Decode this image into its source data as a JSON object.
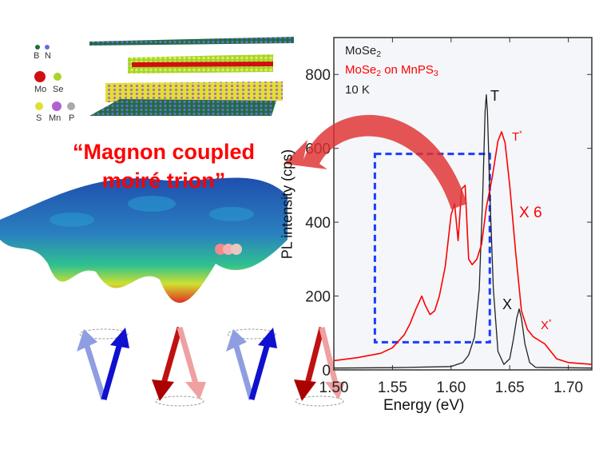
{
  "figure_title": [
    "“Magnon coupled",
    "moiré trion”"
  ],
  "atom_legend": {
    "row1": [
      "B",
      "N"
    ],
    "row2": [
      "Mo",
      "Se"
    ],
    "row3": [
      "S",
      "Mn",
      "P"
    ]
  },
  "colors": {
    "black_series": "#222222",
    "red_series": "#ff0000",
    "box": "#1a3cff",
    "title": "#ff0000"
  },
  "chart_data": {
    "type": "line",
    "xlabel": "Energy (eV)",
    "ylabel": "PL intensity (cps)",
    "xlim": [
      1.5,
      1.72
    ],
    "ylim": [
      0,
      900
    ],
    "xticks": [
      "1.50",
      "1.55",
      "1.60",
      "1.65",
      "1.70"
    ],
    "xtick_values": [
      1.5,
      1.55,
      1.6,
      1.65,
      1.7
    ],
    "yticks": [
      "0",
      "200",
      "400",
      "600",
      "800"
    ],
    "ytick_values": [
      0,
      200,
      400,
      600,
      800
    ],
    "legend": {
      "placement": "top-left",
      "entries": [
        {
          "label": "MoSe",
          "sub": "2",
          "color": "#222222"
        },
        {
          "label": "MoSe",
          "sub": "2",
          "suffix": " on MnPS",
          "sub2": "3",
          "color": "#ff0000"
        }
      ],
      "condition": "10 K"
    },
    "annotations": {
      "T": "T",
      "Tstar": "T",
      "X": "X",
      "Xstar": "X",
      "star": "*",
      "scale": "X 6"
    },
    "series": [
      {
        "name": "MoSe2",
        "color": "#222222",
        "x": [
          1.5,
          1.55,
          1.6,
          1.61,
          1.615,
          1.62,
          1.624,
          1.627,
          1.629,
          1.63,
          1.631,
          1.633,
          1.636,
          1.64,
          1.645,
          1.65,
          1.653,
          1.656,
          1.658,
          1.66,
          1.663,
          1.667,
          1.672,
          1.72
        ],
        "y": [
          5,
          6,
          9,
          20,
          40,
          90,
          220,
          480,
          700,
          745,
          700,
          480,
          220,
          50,
          15,
          30,
          80,
          140,
          165,
          140,
          70,
          20,
          7,
          5
        ]
      },
      {
        "name": "MoSe2 on MnPS3 (x6)",
        "color": "#ff0000",
        "x": [
          1.5,
          1.52,
          1.54,
          1.55,
          1.56,
          1.565,
          1.57,
          1.575,
          1.578,
          1.582,
          1.586,
          1.59,
          1.595,
          1.6,
          1.603,
          1.606,
          1.609,
          1.612,
          1.615,
          1.618,
          1.622,
          1.626,
          1.63,
          1.635,
          1.64,
          1.643,
          1.646,
          1.65,
          1.655,
          1.66,
          1.665,
          1.67,
          1.675,
          1.68,
          1.685,
          1.69,
          1.7,
          1.72
        ],
        "y": [
          25,
          33,
          45,
          60,
          95,
          125,
          165,
          200,
          175,
          150,
          160,
          200,
          280,
          420,
          450,
          350,
          490,
          500,
          300,
          285,
          300,
          340,
          440,
          520,
          620,
          645,
          615,
          500,
          320,
          160,
          110,
          90,
          80,
          70,
          50,
          30,
          20,
          15
        ]
      }
    ],
    "highlight_box": {
      "x": [
        1.535,
        1.633
      ],
      "y": [
        75,
        585
      ]
    }
  }
}
